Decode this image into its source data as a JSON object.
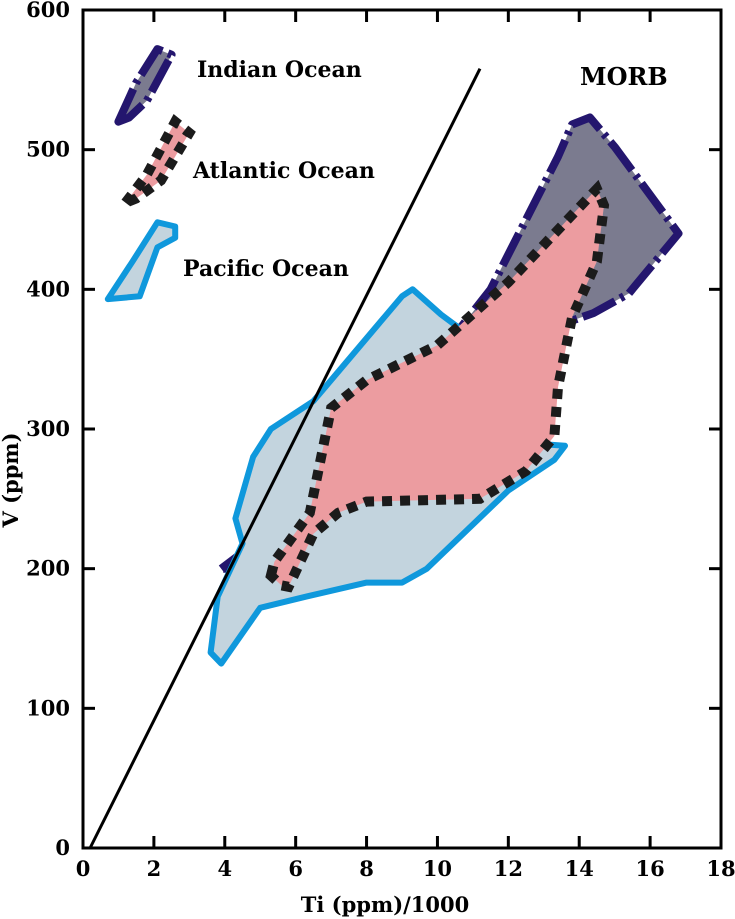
{
  "chart_data": {
    "type": "scatter",
    "title": "",
    "xlabel": "Ti (ppm)/1000",
    "ylabel": "V (ppm)",
    "xlim": [
      0,
      18
    ],
    "ylim": [
      0,
      600
    ],
    "xticks": [
      0,
      2,
      4,
      6,
      8,
      10,
      12,
      14,
      16,
      18
    ],
    "yticks": [
      0,
      100,
      200,
      300,
      400,
      500,
      600
    ],
    "grid": false,
    "region_label": "MORB",
    "reference_line": {
      "points": [
        [
          0.2,
          0
        ],
        [
          11.2,
          558
        ]
      ]
    },
    "fields": [
      {
        "name": "Indian Ocean",
        "color": "#7b7b8f",
        "border": "#24166e",
        "style": "dashed",
        "points": [
          [
            3.9,
            200
          ],
          [
            5.2,
            225
          ],
          [
            9.8,
            345
          ],
          [
            11.5,
            400
          ],
          [
            13.4,
            495
          ],
          [
            13.8,
            518
          ],
          [
            14.3,
            523
          ],
          [
            15.0,
            502
          ],
          [
            16.8,
            440
          ],
          [
            15.4,
            397
          ],
          [
            14.4,
            383
          ],
          [
            13.5,
            375
          ],
          [
            10.5,
            360
          ],
          [
            8.0,
            325
          ],
          [
            5.5,
            255
          ],
          [
            4.5,
            200
          ]
        ]
      },
      {
        "name": "Pacific Ocean",
        "color": "#c3d4de",
        "border": "#0f98dc",
        "style": "solid",
        "points": [
          [
            3.6,
            140
          ],
          [
            3.9,
            132
          ],
          [
            5.0,
            172
          ],
          [
            6.3,
            180
          ],
          [
            8.0,
            190
          ],
          [
            9.0,
            190
          ],
          [
            9.7,
            200
          ],
          [
            12.0,
            256
          ],
          [
            13.3,
            278
          ],
          [
            13.6,
            288
          ],
          [
            12.5,
            290
          ],
          [
            11.0,
            365
          ],
          [
            10.1,
            382
          ],
          [
            9.3,
            400
          ],
          [
            9.0,
            395
          ],
          [
            6.5,
            320
          ],
          [
            5.3,
            300
          ],
          [
            4.8,
            280
          ],
          [
            4.3,
            236
          ],
          [
            4.5,
            218
          ],
          [
            3.8,
            180
          ]
        ]
      },
      {
        "name": "Atlantic Ocean",
        "color": "#ec9ca0",
        "border": "#1b1b1b",
        "style": "dotted",
        "points": [
          [
            5.3,
            195
          ],
          [
            5.4,
            205
          ],
          [
            6.4,
            240
          ],
          [
            7.0,
            315
          ],
          [
            8.0,
            335
          ],
          [
            10.0,
            360
          ],
          [
            12.0,
            405
          ],
          [
            14.5,
            472
          ],
          [
            14.7,
            460
          ],
          [
            14.5,
            420
          ],
          [
            13.8,
            380
          ],
          [
            13.4,
            330
          ],
          [
            13.3,
            295
          ],
          [
            12.5,
            270
          ],
          [
            11.2,
            250
          ],
          [
            8.0,
            248
          ],
          [
            7.2,
            240
          ],
          [
            6.5,
            225
          ],
          [
            5.8,
            187
          ],
          [
            5.6,
            188
          ]
        ]
      }
    ],
    "legend_entries": [
      {
        "label": "Indian Ocean",
        "swatch": [
          [
            1.0,
            520
          ],
          [
            1.5,
            548
          ],
          [
            2.1,
            572
          ],
          [
            2.5,
            568
          ],
          [
            1.8,
            535
          ],
          [
            1.3,
            523
          ]
        ]
      },
      {
        "label": "Atlantic Ocean",
        "swatch": [
          [
            1.2,
            462
          ],
          [
            1.8,
            482
          ],
          [
            2.6,
            520
          ],
          [
            3.0,
            512
          ],
          [
            2.2,
            478
          ],
          [
            1.5,
            465
          ]
        ]
      },
      {
        "label": "Pacific Ocean",
        "swatch": [
          [
            0.7,
            393
          ],
          [
            1.4,
            420
          ],
          [
            2.1,
            448
          ],
          [
            2.6,
            445
          ],
          [
            2.6,
            437
          ],
          [
            2.1,
            430
          ],
          [
            1.6,
            395
          ]
        ]
      }
    ]
  }
}
